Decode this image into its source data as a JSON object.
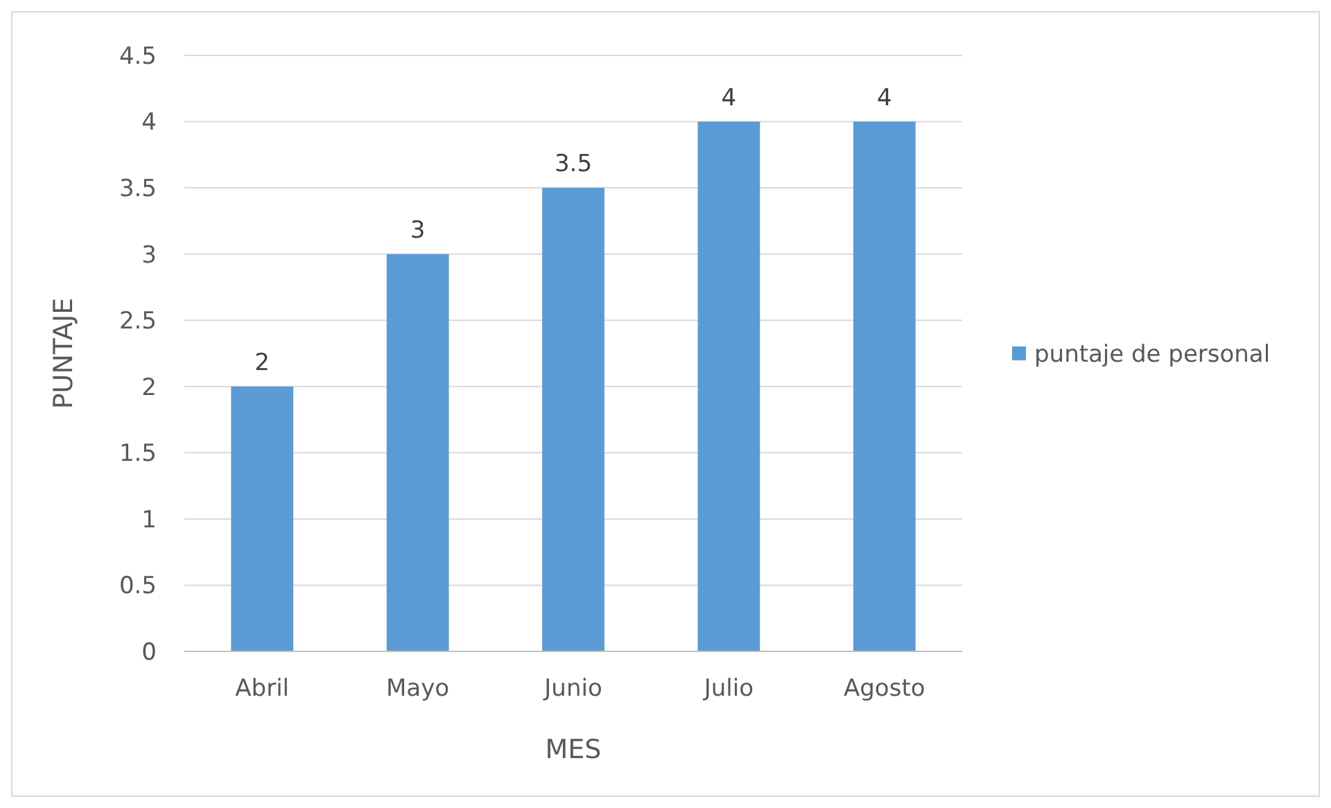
{
  "chart_data": {
    "type": "bar",
    "xlabel": "MES",
    "ylabel": "PUNTAJE",
    "categories": [
      "Abril",
      "Mayo",
      "Junio",
      "Julio",
      "Agosto"
    ],
    "series": [
      {
        "name": "puntaje de personal",
        "color": "#5b9bd5",
        "values": [
          2,
          3,
          3.5,
          4,
          4
        ]
      }
    ],
    "ylim": [
      0,
      4.5
    ],
    "yticks": [
      0,
      0.5,
      1,
      1.5,
      2,
      2.5,
      3,
      3.5,
      4,
      4.5
    ],
    "grid": "y",
    "legend": "right",
    "data_labels": true
  }
}
